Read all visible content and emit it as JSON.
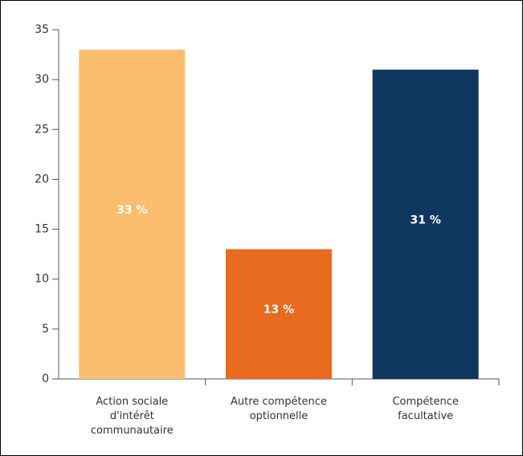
{
  "chart_data": {
    "type": "bar",
    "categories": [
      "Action sociale d'intérêt communautaire",
      "Autre compétence optionnelle",
      "Compétence facultative"
    ],
    "values": [
      33,
      13,
      31
    ],
    "value_labels": [
      "33 %",
      "13 %",
      "31 %"
    ],
    "colors": [
      "#fbbe6f",
      "#e86b20",
      "#10375f"
    ],
    "ylim": [
      0,
      35
    ],
    "yticks": [
      0,
      5,
      10,
      15,
      20,
      25,
      30,
      35
    ],
    "grid": false
  }
}
